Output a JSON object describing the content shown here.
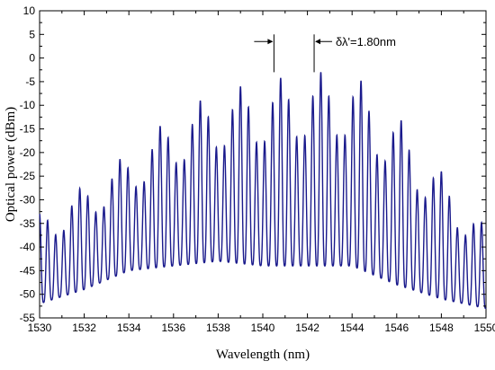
{
  "chart_data": {
    "type": "line",
    "title": "",
    "xlabel": "Wavelength (nm)",
    "ylabel": "Optical power (dBm)",
    "xlim": [
      1530,
      1550
    ],
    "ylim": [
      -55,
      10
    ],
    "xticks": [
      1530,
      1532,
      1534,
      1536,
      1538,
      1540,
      1542,
      1544,
      1546,
      1548,
      1550
    ],
    "yticks": [
      -55,
      -50,
      -45,
      -40,
      -35,
      -30,
      -25,
      -20,
      -15,
      -10,
      -5,
      0,
      5,
      10
    ],
    "grid": false,
    "line_color": "#1a1a8c",
    "series": [
      {
        "name": "",
        "fringe_period_nm": 0.36,
        "peak_envelope": {
          "x": [
            1530,
            1532,
            1534,
            1536,
            1538,
            1540,
            1542,
            1544,
            1546,
            1548,
            1550
          ],
          "y": [
            -33,
            -27,
            -20,
            -12,
            -7,
            -5,
            -3,
            -3,
            -12,
            -24,
            -36
          ]
        },
        "trough_envelope": {
          "x": [
            1530,
            1532,
            1534,
            1536,
            1538,
            1540,
            1542,
            1544,
            1546,
            1548,
            1550
          ],
          "y": [
            -52,
            -49,
            -45,
            -44,
            -43,
            -44,
            -44,
            -44,
            -48,
            -51,
            -53
          ]
        }
      }
    ],
    "annotation": {
      "text": "δλ'=1.80nm",
      "marker_x": [
        1540.5,
        1542.3
      ],
      "y": 1
    }
  }
}
